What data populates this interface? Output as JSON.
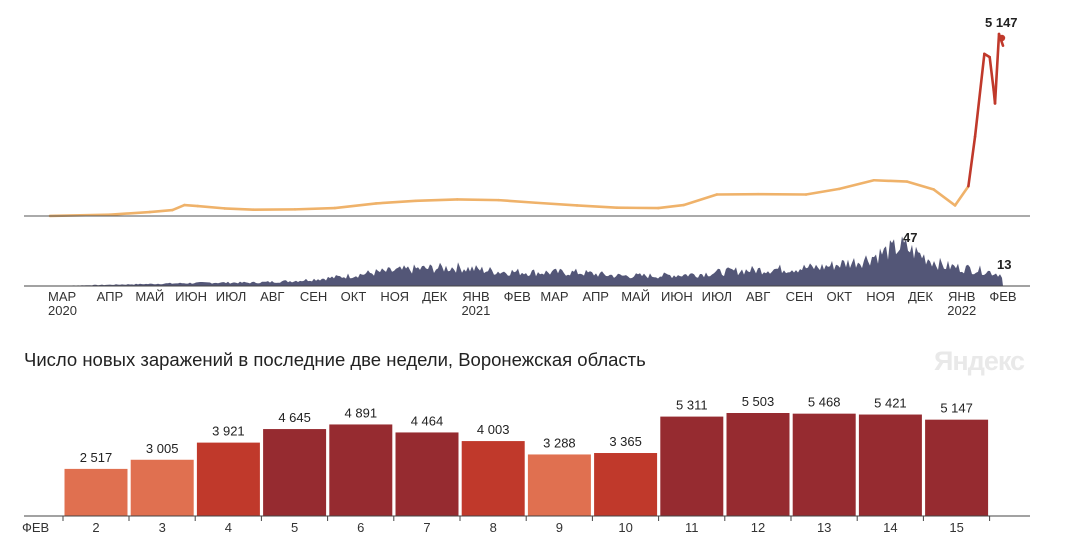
{
  "colors": {
    "trend_line": "#efb26a",
    "trend_line_peak": "#c0392b",
    "daily_area": "#4a4d70",
    "bar_level_1": "#e07050",
    "bar_level_2": "#c0392b",
    "bar_level_3": "#962b30",
    "weekend_label": "#d03a2a",
    "baseline": "#444444"
  },
  "brand": {
    "logo": "Яндекс"
  },
  "top_chart": {
    "peak_label": "5 147",
    "x_months": [
      "МАР",
      "АПР",
      "МАЙ",
      "ИЮН",
      "ИЮЛ",
      "АВГ",
      "СЕН",
      "ОКТ",
      "НОЯ",
      "ДЕК",
      "ЯНВ",
      "ФЕВ",
      "МАР",
      "АПР",
      "МАЙ",
      "ИЮН",
      "ИЮЛ",
      "АВГ",
      "СЕН",
      "ОКТ",
      "НОЯ",
      "ДЕК",
      "ЯНВ",
      "ФЕВ"
    ],
    "x_years": [
      {
        "label": "2020",
        "month_index": 0
      },
      {
        "label": "2021",
        "month_index": 10
      },
      {
        "label": "2022",
        "month_index": 22
      }
    ]
  },
  "deaths_chart": {
    "peak_label": "47",
    "last_label": "13"
  },
  "bottom_chart": {
    "title": "Число новых заражений в последние две недели, Воронежская область",
    "month_label": "ФЕВ"
  },
  "chart_data": [
    {
      "type": "line",
      "series": [
        {
          "points": [
            [
              "2020-03-01",
              3
            ],
            [
              "2020-04-15",
              40
            ],
            [
              "2020-05-15",
              120
            ],
            [
              "2020-06-01",
              180
            ],
            [
              "2020-06-10",
              330
            ],
            [
              "2020-06-20",
              300
            ],
            [
              "2020-07-10",
              230
            ],
            [
              "2020-08-01",
              190
            ],
            [
              "2020-09-01",
              200
            ],
            [
              "2020-10-01",
              240
            ],
            [
              "2020-11-01",
              380
            ],
            [
              "2020-12-01",
              460
            ],
            [
              "2021-01-01",
              500
            ],
            [
              "2021-02-01",
              480
            ],
            [
              "2021-03-01",
              400
            ],
            [
              "2021-04-01",
              320
            ],
            [
              "2021-05-01",
              250
            ],
            [
              "2021-06-01",
              240
            ],
            [
              "2021-06-20",
              330
            ],
            [
              "2021-07-15",
              650
            ],
            [
              "2021-08-15",
              660
            ],
            [
              "2021-09-20",
              650
            ],
            [
              "2021-10-15",
              820
            ],
            [
              "2021-11-10",
              1080
            ],
            [
              "2021-12-05",
              1040
            ],
            [
              "2021-12-25",
              800
            ],
            [
              "2022-01-10",
              320
            ],
            [
              "2022-01-20",
              900
            ],
            [
              "2022-01-25",
              2400
            ],
            [
              "2022-02-01",
              4900
            ],
            [
              "2022-02-05",
              4800
            ],
            [
              "2022-02-08",
              3800
            ],
            [
              "2022-02-09",
              3400
            ],
            [
              "2022-02-12",
              5500
            ],
            [
              "2022-02-15",
              5147
            ]
          ]
        }
      ],
      "final_value": 5147
    },
    {
      "type": "area",
      "series": [
        {
          "points": [
            [
              "2020-03-01",
              0
            ],
            [
              "2020-05-01",
              2
            ],
            [
              "2020-06-01",
              3
            ],
            [
              "2020-07-01",
              4
            ],
            [
              "2020-08-01",
              4
            ],
            [
              "2020-09-01",
              6
            ],
            [
              "2020-10-01",
              10
            ],
            [
              "2020-11-01",
              16
            ],
            [
              "2020-12-01",
              20
            ],
            [
              "2021-01-01",
              22
            ],
            [
              "2021-02-01",
              17
            ],
            [
              "2021-03-01",
              16
            ],
            [
              "2021-04-01",
              16
            ],
            [
              "2021-05-01",
              12
            ],
            [
              "2021-06-01",
              12
            ],
            [
              "2021-07-01",
              14
            ],
            [
              "2021-08-01",
              18
            ],
            [
              "2021-09-01",
              20
            ],
            [
              "2021-10-01",
              22
            ],
            [
              "2021-11-01",
              30
            ],
            [
              "2021-12-01",
              47
            ],
            [
              "2022-01-01",
              24
            ],
            [
              "2022-02-01",
              18
            ],
            [
              "2022-02-15",
              13
            ]
          ]
        }
      ],
      "peak_value": 47,
      "final_value": 13
    },
    {
      "type": "bar",
      "title": "Число новых заражений в последние две недели, Воронежская область",
      "categories": [
        "2",
        "3",
        "4",
        "5",
        "6",
        "7",
        "8",
        "9",
        "10",
        "11",
        "12",
        "13",
        "14",
        "15"
      ],
      "values": [
        2517,
        3005,
        3921,
        4645,
        4891,
        4464,
        4003,
        3288,
        3365,
        5311,
        5503,
        5468,
        5421,
        5147
      ],
      "value_labels": [
        "2 517",
        "3 005",
        "3 921",
        "4 645",
        "4 891",
        "4 464",
        "4 003",
        "3 288",
        "3 365",
        "5 311",
        "5 503",
        "5 468",
        "5 421",
        "5 147"
      ],
      "color_levels": [
        1,
        1,
        2,
        3,
        3,
        3,
        2,
        1,
        2,
        3,
        3,
        3,
        3,
        3
      ],
      "weekend": [
        false,
        false,
        false,
        true,
        true,
        false,
        false,
        false,
        false,
        false,
        true,
        true,
        false,
        false
      ],
      "ylim": [
        0,
        5503
      ]
    }
  ]
}
